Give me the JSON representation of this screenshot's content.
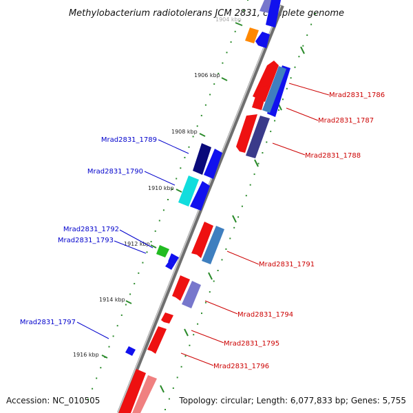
{
  "title": "Methylobacterium radiotolerans JCM 2831, complete genome",
  "accession": "Accession: NC_010505",
  "summary": "Topology: circular; Length: 6,077,833 bp; Genes: 5,755",
  "colors": {
    "backbone": "#8a8a8a",
    "tick": "#2a8a2a",
    "forward_label": "#cc0000",
    "reverse_label": "#0000cc",
    "red": "#ee1111",
    "blue": "#1111ee",
    "navy": "#0a0a7a",
    "steel": "#3f7fbf",
    "lavender": "#6666cc",
    "cyan": "#11dddd",
    "green": "#22bb22",
    "orange": "#ff8800",
    "pink": "#f08080"
  },
  "ticks": [
    "1904 kbp",
    "1906 kbp",
    "1908 kbp",
    "1910 kbp",
    "1912 kbp",
    "1914 kbp",
    "1916 kbp"
  ],
  "gene_labels_forward": [
    "Mrad2831_1786",
    "Mrad2831_1787",
    "Mrad2831_1788",
    "Mrad2831_1791",
    "Mrad2831_1794",
    "Mrad2831_1795",
    "Mrad2831_1796"
  ],
  "gene_labels_reverse": [
    "Mrad2831_1789",
    "Mrad2831_1790",
    "Mrad2831_1792",
    "Mrad2831_1793",
    "Mrad2831_1797"
  ]
}
